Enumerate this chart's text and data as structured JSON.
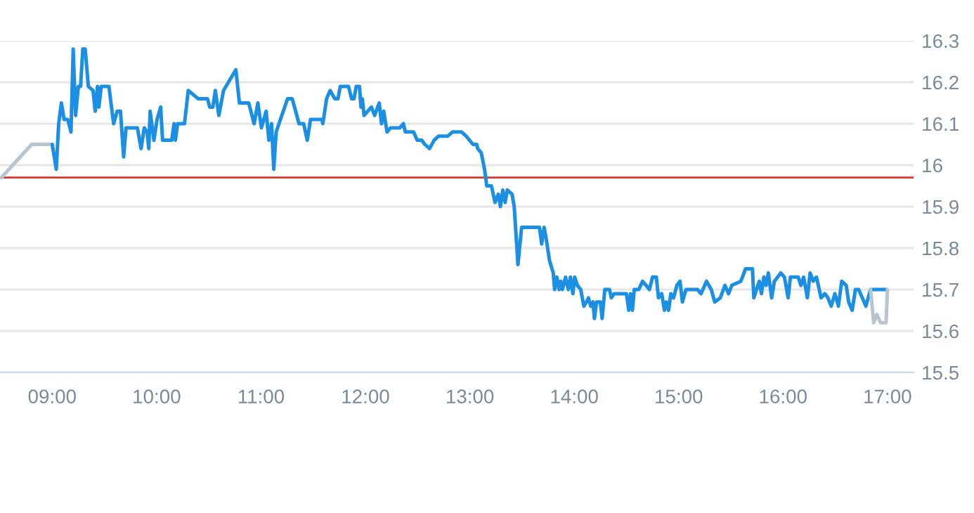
{
  "chart_data": {
    "type": "line",
    "series": [
      {
        "color": "#b8c4ce",
        "x": [
          8.513,
          8.803,
          9.0
        ],
        "values": [
          15.97,
          16.05,
          16.05
        ]
      },
      {
        "color": "#1a8fe3",
        "x": [
          9.0,
          9.039,
          9.062,
          9.088,
          9.114,
          9.149,
          9.18,
          9.201,
          9.224,
          9.25,
          9.272,
          9.293,
          9.316,
          9.346,
          9.391,
          9.412,
          9.434,
          9.447,
          9.47,
          9.543,
          9.588,
          9.622,
          9.654,
          9.684,
          9.707,
          9.816,
          9.851,
          9.882,
          9.908,
          9.925,
          9.938,
          9.974,
          10.004,
          10.039,
          10.057,
          10.145,
          10.167,
          10.18,
          10.201,
          10.267,
          10.303,
          10.399,
          10.487,
          10.509,
          10.539,
          10.562,
          10.596,
          10.641,
          10.759,
          10.793,
          10.882,
          10.934,
          10.97,
          11.004,
          11.049,
          11.075,
          11.101,
          11.122,
          11.145,
          11.254,
          11.299,
          11.364,
          11.408,
          11.443,
          11.474,
          11.583,
          11.592,
          11.628,
          11.662,
          11.707,
          11.737,
          11.759,
          11.838,
          11.868,
          11.891,
          11.912,
          11.943,
          11.957,
          11.97,
          11.987,
          12.022,
          12.057,
          12.088,
          12.132,
          12.154,
          12.175,
          12.207,
          12.241,
          12.329,
          12.364,
          12.382,
          12.461,
          12.496,
          12.539,
          12.57,
          12.614,
          12.658,
          12.701,
          12.789,
          12.833,
          12.921,
          12.964,
          13.03,
          13.066,
          13.075,
          13.109,
          13.141,
          13.162,
          13.207,
          13.241,
          13.272,
          13.293,
          13.316,
          13.338,
          13.359,
          13.404,
          13.425,
          13.461,
          13.496,
          13.667,
          13.688,
          13.711,
          13.733,
          13.763,
          13.799,
          13.812,
          13.833,
          13.855,
          13.872,
          13.886,
          13.917,
          13.943,
          13.964,
          13.987,
          14.004,
          14.03,
          14.062,
          14.092,
          14.118,
          14.136,
          14.158,
          14.18,
          14.193,
          14.214,
          14.25,
          14.267,
          14.293,
          14.338,
          14.355,
          14.382,
          14.5,
          14.522,
          14.539,
          14.557,
          14.575,
          14.618,
          14.654,
          14.688,
          14.72,
          14.75,
          14.786,
          14.807,
          14.838,
          14.864,
          14.882,
          14.904,
          14.925,
          14.951,
          14.983,
          15.013,
          15.036,
          15.07,
          15.18,
          15.214,
          15.267,
          15.312,
          15.346,
          15.399,
          15.443,
          15.478,
          15.509,
          15.596,
          15.641,
          15.707,
          15.72,
          15.772,
          15.793,
          15.816,
          15.838,
          15.859,
          15.891,
          15.917,
          15.978,
          16.013,
          16.049,
          16.07,
          16.145,
          16.171,
          16.197,
          16.233,
          16.259,
          16.289,
          16.32,
          16.364,
          16.399,
          16.43,
          16.461,
          16.496,
          16.53,
          16.562,
          16.605,
          16.628,
          16.662,
          16.693,
          16.724,
          16.759,
          16.793,
          16.838,
          16.987
        ],
        "values": [
          16.05,
          15.99,
          16.1,
          16.15,
          16.11,
          16.11,
          16.08,
          16.28,
          16.12,
          16.19,
          16.19,
          16.28,
          16.28,
          16.19,
          16.18,
          16.13,
          16.19,
          16.14,
          16.19,
          16.19,
          16.1,
          16.13,
          16.13,
          16.02,
          16.09,
          16.09,
          16.04,
          16.09,
          16.08,
          16.04,
          16.13,
          16.06,
          16.11,
          16.14,
          16.06,
          16.06,
          16.1,
          16.06,
          16.1,
          16.1,
          16.18,
          16.16,
          16.16,
          16.14,
          16.14,
          16.18,
          16.12,
          16.18,
          16.23,
          16.15,
          16.15,
          16.1,
          16.15,
          16.09,
          16.13,
          16.06,
          16.1,
          15.99,
          16.08,
          16.16,
          16.16,
          16.1,
          16.1,
          16.06,
          16.11,
          16.11,
          16.1,
          16.16,
          16.18,
          16.16,
          16.16,
          16.19,
          16.19,
          16.16,
          16.16,
          16.19,
          16.19,
          16.14,
          16.16,
          16.12,
          16.13,
          16.14,
          16.12,
          16.15,
          16.1,
          16.13,
          16.08,
          16.09,
          16.09,
          16.1,
          16.08,
          16.08,
          16.06,
          16.06,
          16.05,
          16.04,
          16.06,
          16.07,
          16.07,
          16.08,
          16.08,
          16.07,
          16.05,
          16.05,
          16.04,
          16.03,
          15.99,
          15.95,
          15.95,
          15.91,
          15.93,
          15.9,
          15.94,
          15.91,
          15.94,
          15.93,
          15.9,
          15.76,
          15.85,
          15.85,
          15.81,
          15.85,
          15.82,
          15.77,
          15.74,
          15.7,
          15.73,
          15.7,
          15.72,
          15.7,
          15.73,
          15.7,
          15.73,
          15.69,
          15.73,
          15.71,
          15.7,
          15.66,
          15.67,
          15.68,
          15.66,
          15.67,
          15.63,
          15.67,
          15.67,
          15.63,
          15.7,
          15.7,
          15.68,
          15.69,
          15.69,
          15.65,
          15.69,
          15.65,
          15.7,
          15.7,
          15.72,
          15.71,
          15.7,
          15.73,
          15.73,
          15.68,
          15.69,
          15.65,
          15.67,
          15.65,
          15.69,
          15.68,
          15.71,
          15.72,
          15.67,
          15.7,
          15.7,
          15.69,
          15.72,
          15.7,
          15.67,
          15.68,
          15.71,
          15.69,
          15.71,
          15.72,
          15.75,
          15.75,
          15.68,
          15.72,
          15.69,
          15.73,
          15.71,
          15.74,
          15.68,
          15.72,
          15.74,
          15.73,
          15.68,
          15.73,
          15.73,
          15.71,
          15.73,
          15.68,
          15.74,
          15.72,
          15.73,
          15.68,
          15.69,
          15.68,
          15.66,
          15.69,
          15.66,
          15.72,
          15.71,
          15.67,
          15.65,
          15.7,
          15.7,
          15.68,
          15.66,
          15.7,
          15.7
        ]
      },
      {
        "color": "#b8c4ce",
        "x": [
          16.838,
          16.868,
          16.899,
          16.934,
          16.987,
          17.0
        ],
        "values": [
          15.7,
          15.62,
          15.64,
          15.62,
          15.62,
          15.7
        ]
      }
    ],
    "xlim": [
      8.5,
      17.25
    ],
    "xticks": [
      {
        "value": 9,
        "label": "09:00"
      },
      {
        "value": 10,
        "label": "10:00"
      },
      {
        "value": 11,
        "label": "11:00"
      },
      {
        "value": 12,
        "label": "12:00"
      },
      {
        "value": 13,
        "label": "13:00"
      },
      {
        "value": 14,
        "label": "14:00"
      },
      {
        "value": 15,
        "label": "15:00"
      },
      {
        "value": 16,
        "label": "16:00"
      },
      {
        "value": 17,
        "label": "17:00"
      }
    ],
    "ylim": [
      15.5,
      16.3
    ],
    "yticks": [
      15.5,
      15.6,
      15.7,
      15.8,
      15.9,
      16,
      16.1,
      16.2,
      16.3
    ],
    "ref_lines": [
      {
        "axis": "y",
        "value": 15.97,
        "color": "#d83a2e"
      }
    ],
    "grid": "y"
  }
}
